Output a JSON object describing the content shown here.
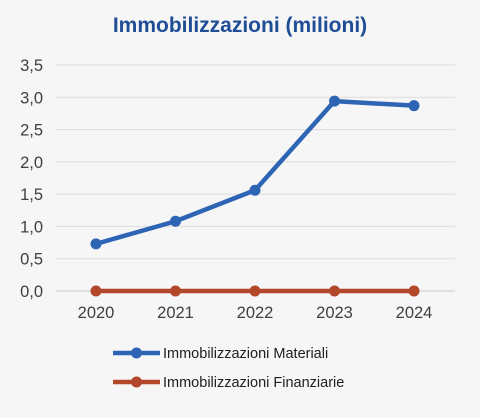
{
  "chart_data": {
    "type": "line",
    "title": "Immobilizzazioni (milioni)",
    "xlabel": "",
    "ylabel": "",
    "categories": [
      "2020",
      "2021",
      "2022",
      "2023",
      "2024"
    ],
    "ylim": [
      0,
      3.5
    ],
    "yticks": [
      "0,0",
      "0,5",
      "1,0",
      "1,5",
      "2,0",
      "2,5",
      "3,0",
      "3,5"
    ],
    "grid": true,
    "legend_position": "bottom",
    "series": [
      {
        "name": "Immobilizzazioni Materiali",
        "values": [
          0.73,
          1.08,
          1.56,
          2.94,
          2.87
        ],
        "color": "#2e64b4"
      },
      {
        "name": "Immobilizzazioni Finanziarie",
        "values": [
          0.0,
          0.0,
          0.0,
          0.0,
          0.0
        ],
        "color": "#b2472a"
      }
    ]
  }
}
